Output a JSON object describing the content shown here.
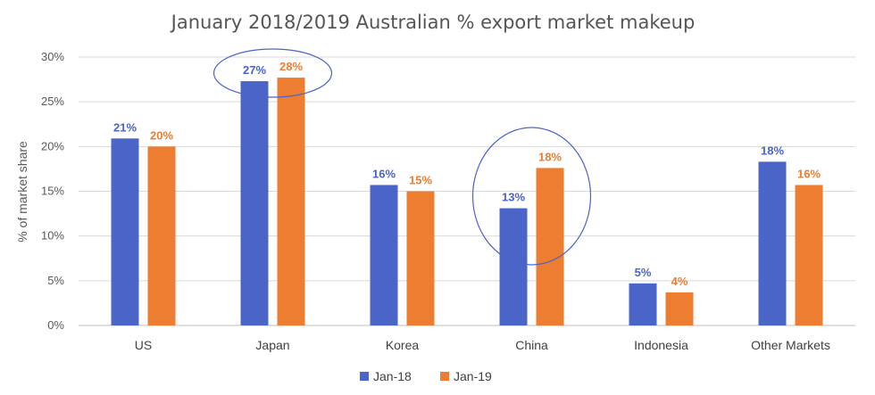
{
  "chart_data": {
    "type": "bar",
    "title": "January 2018/2019 Australian %  export market makeup",
    "ylabel": "% of market share",
    "xlabel": "",
    "ylim": [
      0,
      30
    ],
    "yticks": [
      0,
      5,
      10,
      15,
      20,
      25,
      30
    ],
    "ytick_labels": [
      "0%",
      "5%",
      "10%",
      "15%",
      "20%",
      "25%",
      "30%"
    ],
    "grid": true,
    "legend_position": "bottom",
    "categories": [
      "US",
      "Japan",
      "Korea",
      "China",
      "Indonesia",
      "Other Markets"
    ],
    "series": [
      {
        "name": "Jan-18",
        "color": "#4A64C8",
        "values": [
          20.9,
          27.3,
          15.7,
          13.1,
          4.7,
          18.3
        ],
        "labels": [
          "21%",
          "27%",
          "16%",
          "13%",
          "5%",
          "18%"
        ]
      },
      {
        "name": "Jan-19",
        "color": "#ED7D31",
        "values": [
          20.0,
          27.7,
          15.0,
          17.6,
          3.7,
          15.7
        ],
        "labels": [
          "20%",
          "28%",
          "15%",
          "18%",
          "4%",
          "16%"
        ]
      }
    ],
    "annotations": [
      {
        "type": "ellipse",
        "category": "Japan",
        "color": "#4A64C8"
      },
      {
        "type": "ellipse",
        "category": "China",
        "color": "#4A64C8"
      }
    ]
  }
}
